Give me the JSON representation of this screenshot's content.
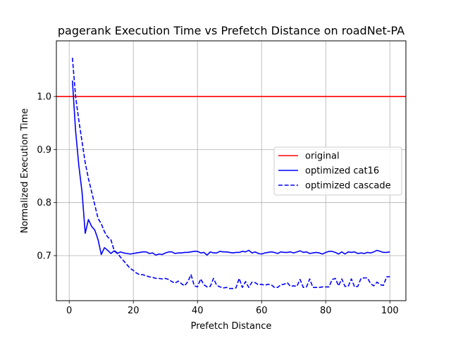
{
  "chart_data": {
    "type": "line",
    "title": "pagerank Execution Time vs Prefetch Distance on roadNet-PA",
    "xlabel": "Prefetch Distance",
    "ylabel": "Normalized Execution Time",
    "xlim": [
      -4,
      105
    ],
    "ylim": [
      0.615,
      1.105
    ],
    "xticks": [
      0,
      20,
      40,
      60,
      80,
      100
    ],
    "yticks": [
      0.7,
      0.8,
      0.9,
      1.0
    ],
    "xtick_labels": [
      "0",
      "20",
      "40",
      "60",
      "80",
      "100"
    ],
    "ytick_labels": [
      "0.7",
      "0.8",
      "0.9",
      "1.0"
    ],
    "grid": true,
    "legend_position": "center-right",
    "reference_line": {
      "name": "original",
      "y": 1.0,
      "color": "#ff0000",
      "style": "solid"
    },
    "series": [
      {
        "name": "optimized cat16",
        "color": "#0000ff",
        "style": "solid",
        "x": [
          1,
          2,
          3,
          4,
          5,
          6,
          7,
          8,
          9,
          10,
          11,
          12,
          13,
          14,
          15,
          16,
          17,
          18,
          19,
          20,
          21,
          22,
          23,
          24,
          25,
          26,
          27,
          28,
          29,
          30,
          31,
          32,
          33,
          34,
          35,
          36,
          37,
          38,
          39,
          40,
          41,
          42,
          43,
          44,
          45,
          46,
          47,
          48,
          49,
          50,
          51,
          52,
          53,
          54,
          55,
          56,
          57,
          58,
          59,
          60,
          61,
          62,
          63,
          64,
          65,
          66,
          67,
          68,
          69,
          70,
          71,
          72,
          73,
          74,
          75,
          76,
          77,
          78,
          79,
          80,
          81,
          82,
          83,
          84,
          85,
          86,
          87,
          88,
          89,
          90,
          91,
          92,
          93,
          94,
          95,
          96,
          97,
          98,
          99,
          100
        ],
        "y": [
          1.03,
          0.935,
          0.87,
          0.82,
          0.742,
          0.768,
          0.755,
          0.748,
          0.73,
          0.702,
          0.715,
          0.71,
          0.704,
          0.709,
          0.704,
          0.707,
          0.705,
          0.704,
          0.703,
          0.704,
          0.705,
          0.706,
          0.707,
          0.707,
          0.704,
          0.705,
          0.701,
          0.703,
          0.702,
          0.705,
          0.707,
          0.707,
          0.704,
          0.705,
          0.705,
          0.706,
          0.706,
          0.707,
          0.708,
          0.708,
          0.705,
          0.706,
          0.701,
          0.707,
          0.705,
          0.705,
          0.708,
          0.707,
          0.707,
          0.706,
          0.705,
          0.706,
          0.706,
          0.708,
          0.707,
          0.71,
          0.705,
          0.707,
          0.704,
          0.703,
          0.705,
          0.706,
          0.707,
          0.706,
          0.704,
          0.707,
          0.706,
          0.706,
          0.707,
          0.705,
          0.707,
          0.709,
          0.706,
          0.707,
          0.704,
          0.705,
          0.706,
          0.705,
          0.703,
          0.706,
          0.708,
          0.708,
          0.706,
          0.703,
          0.707,
          0.703,
          0.707,
          0.706,
          0.707,
          0.704,
          0.705,
          0.704,
          0.706,
          0.705,
          0.707,
          0.71,
          0.708,
          0.706,
          0.706,
          0.707
        ]
      },
      {
        "name": "optimized cascade",
        "color": "#0000ff",
        "style": "dashed",
        "x": [
          1,
          2,
          3,
          4,
          5,
          6,
          7,
          8,
          9,
          10,
          11,
          12,
          13,
          14,
          15,
          16,
          17,
          18,
          19,
          20,
          21,
          22,
          23,
          24,
          25,
          26,
          27,
          28,
          29,
          30,
          31,
          32,
          33,
          34,
          35,
          36,
          37,
          38,
          39,
          40,
          41,
          42,
          43,
          44,
          45,
          46,
          47,
          48,
          49,
          50,
          51,
          52,
          53,
          54,
          55,
          56,
          57,
          58,
          59,
          60,
          61,
          62,
          63,
          64,
          65,
          66,
          67,
          68,
          69,
          70,
          71,
          72,
          73,
          74,
          75,
          76,
          77,
          78,
          79,
          80,
          81,
          82,
          83,
          84,
          85,
          86,
          87,
          88,
          89,
          90,
          91,
          92,
          93,
          94,
          95,
          96,
          97,
          98,
          99,
          100
        ],
        "y": [
          1.073,
          1.0,
          0.955,
          0.915,
          0.875,
          0.845,
          0.82,
          0.795,
          0.77,
          0.76,
          0.745,
          0.735,
          0.73,
          0.71,
          0.705,
          0.697,
          0.69,
          0.683,
          0.676,
          0.672,
          0.667,
          0.664,
          0.664,
          0.662,
          0.66,
          0.659,
          0.657,
          0.657,
          0.656,
          0.657,
          0.655,
          0.651,
          0.648,
          0.652,
          0.647,
          0.643,
          0.651,
          0.664,
          0.643,
          0.641,
          0.656,
          0.645,
          0.641,
          0.642,
          0.657,
          0.644,
          0.641,
          0.639,
          0.64,
          0.638,
          0.638,
          0.639,
          0.657,
          0.64,
          0.651,
          0.64,
          0.65,
          0.649,
          0.645,
          0.646,
          0.644,
          0.646,
          0.645,
          0.64,
          0.64,
          0.645,
          0.646,
          0.649,
          0.642,
          0.643,
          0.642,
          0.655,
          0.64,
          0.641,
          0.656,
          0.64,
          0.64,
          0.64,
          0.641,
          0.641,
          0.641,
          0.655,
          0.657,
          0.643,
          0.656,
          0.642,
          0.642,
          0.656,
          0.641,
          0.642,
          0.657,
          0.658,
          0.658,
          0.647,
          0.643,
          0.65,
          0.645,
          0.644,
          0.66,
          0.66
        ]
      }
    ]
  }
}
